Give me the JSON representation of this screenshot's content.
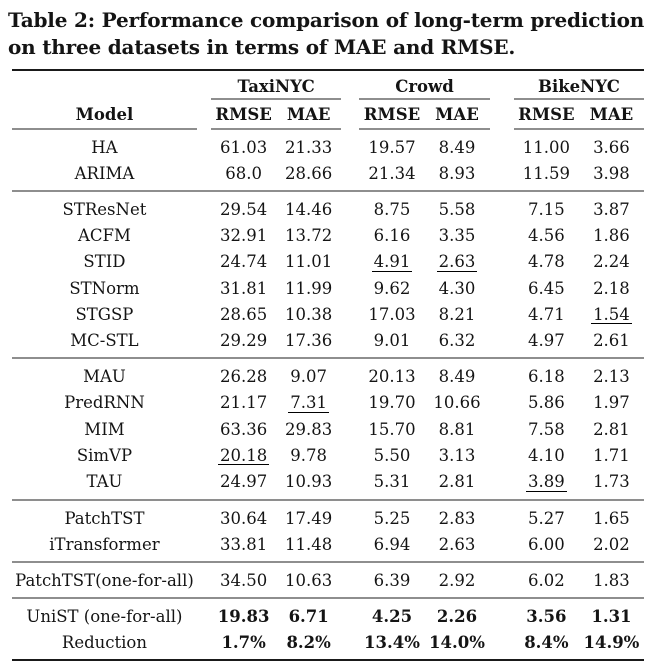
{
  "caption": "Table 2: Performance comparison of long-term prediction on three datasets in terms of MAE and RMSE.",
  "colors": {
    "rule_heavy": "#1a1a1a",
    "rule_light": "#8e8e8e",
    "text": "#141414"
  },
  "chart_data": {
    "type": "table",
    "title": "Table 2: Performance comparison of long-term prediction on three datasets in terms of MAE and RMSE.",
    "column_groups": [
      "TaxiNYC",
      "Crowd",
      "BikeNYC"
    ],
    "metrics_per_group": [
      "RMSE",
      "MAE"
    ]
  },
  "table": {
    "model_header": "Model",
    "groups": [
      {
        "label": "TaxiNYC"
      },
      {
        "label": "Crowd"
      },
      {
        "label": "BikeNYC"
      }
    ],
    "metric_headers": [
      "RMSE",
      "MAE"
    ],
    "sections": [
      {
        "rows": [
          {
            "model": "HA",
            "values": [
              "61.03",
              "21.33",
              "19.57",
              "8.49",
              "11.00",
              "3.66"
            ],
            "underline": [],
            "bold_values": false
          },
          {
            "model": "ARIMA",
            "values": [
              "68.0",
              "28.66",
              "21.34",
              "8.93",
              "11.59",
              "3.98"
            ],
            "underline": [],
            "bold_values": false
          }
        ]
      },
      {
        "rows": [
          {
            "model": "STResNet",
            "values": [
              "29.54",
              "14.46",
              "8.75",
              "5.58",
              "7.15",
              "3.87"
            ],
            "underline": [],
            "bold_values": false
          },
          {
            "model": "ACFM",
            "values": [
              "32.91",
              "13.72",
              "6.16",
              "3.35",
              "4.56",
              "1.86"
            ],
            "underline": [],
            "bold_values": false
          },
          {
            "model": "STID",
            "values": [
              "24.74",
              "11.01",
              "4.91",
              "2.63",
              "4.78",
              "2.24"
            ],
            "underline": [
              2,
              3
            ],
            "bold_values": false
          },
          {
            "model": "STNorm",
            "values": [
              "31.81",
              "11.99",
              "9.62",
              "4.30",
              "6.45",
              "2.18"
            ],
            "underline": [],
            "bold_values": false
          },
          {
            "model": "STGSP",
            "values": [
              "28.65",
              "10.38",
              "17.03",
              "8.21",
              "4.71",
              "1.54"
            ],
            "underline": [
              5
            ],
            "bold_values": false
          },
          {
            "model": "MC-STL",
            "values": [
              "29.29",
              "17.36",
              "9.01",
              "6.32",
              "4.97",
              "2.61"
            ],
            "underline": [],
            "bold_values": false
          }
        ]
      },
      {
        "rows": [
          {
            "model": "MAU",
            "values": [
              "26.28",
              "9.07",
              "20.13",
              "8.49",
              "6.18",
              "2.13"
            ],
            "underline": [],
            "bold_values": false
          },
          {
            "model": "PredRNN",
            "values": [
              "21.17",
              "7.31",
              "19.70",
              "10.66",
              "5.86",
              "1.97"
            ],
            "underline": [
              1
            ],
            "bold_values": false
          },
          {
            "model": "MIM",
            "values": [
              "63.36",
              "29.83",
              "15.70",
              "8.81",
              "7.58",
              "2.81"
            ],
            "underline": [],
            "bold_values": false
          },
          {
            "model": "SimVP",
            "values": [
              "20.18",
              "9.78",
              "5.50",
              "3.13",
              "4.10",
              "1.71"
            ],
            "underline": [
              0
            ],
            "bold_values": false
          },
          {
            "model": "TAU",
            "values": [
              "24.97",
              "10.93",
              "5.31",
              "2.81",
              "3.89",
              "1.73"
            ],
            "underline": [
              4
            ],
            "bold_values": false
          }
        ]
      },
      {
        "rows": [
          {
            "model": "PatchTST",
            "values": [
              "30.64",
              "17.49",
              "5.25",
              "2.83",
              "5.27",
              "1.65"
            ],
            "underline": [],
            "bold_values": false
          },
          {
            "model": "iTransformer",
            "values": [
              "33.81",
              "11.48",
              "6.94",
              "2.63",
              "6.00",
              "2.02"
            ],
            "underline": [],
            "bold_values": false
          }
        ]
      },
      {
        "rows": [
          {
            "model": "PatchTST(one-for-all)",
            "values": [
              "34.50",
              "10.63",
              "6.39",
              "2.92",
              "6.02",
              "1.83"
            ],
            "underline": [],
            "bold_values": false
          }
        ]
      },
      {
        "rows": [
          {
            "model": "UniST (one-for-all)",
            "values": [
              "19.83",
              "6.71",
              "4.25",
              "2.26",
              "3.56",
              "1.31"
            ],
            "underline": [],
            "bold_values": true
          },
          {
            "model": "Reduction",
            "values": [
              "1.7%",
              "8.2%",
              "13.4%",
              "14.0%",
              "8.4%",
              "14.9%"
            ],
            "underline": [],
            "bold_values": true
          }
        ]
      }
    ]
  }
}
